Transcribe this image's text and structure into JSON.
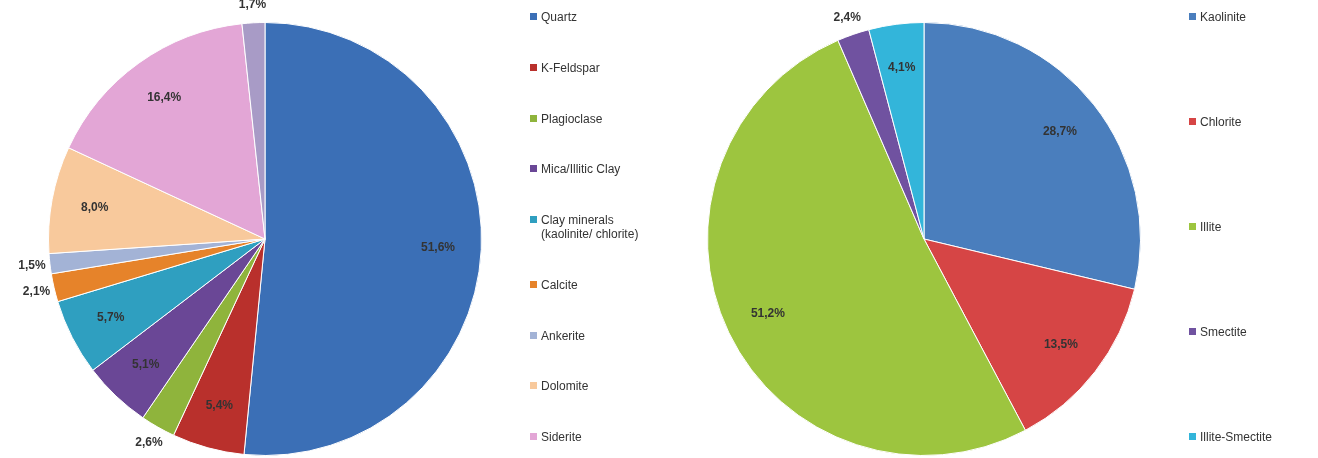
{
  "chart_data": [
    {
      "type": "pie",
      "categories": [
        "Quartz",
        "K-Feldspar",
        "Plagioclase",
        "Mica/Illitic Clay",
        "Clay minerals (kaolinite/ chlorite)",
        "Calcite",
        "Ankerite",
        "Dolomite",
        "Siderite",
        null
      ],
      "values": [
        51.6,
        5.4,
        2.6,
        5.1,
        5.7,
        2.1,
        1.5,
        8.0,
        16.4,
        1.7
      ],
      "colors": [
        "#3b6fb6",
        "#b9302c",
        "#8fb43c",
        "#6a4796",
        "#2f9fc0",
        "#e6832a",
        "#a3b3d6",
        "#f8c99c",
        "#e3a6d6",
        "#a89bc6"
      ],
      "value_labels": [
        "51,6%",
        "5,4%",
        "2,6%",
        "5,1%",
        "5,7%",
        "2,1%",
        "1,5%",
        "8,0%",
        "16,4%",
        "1,7%"
      ],
      "legend": "right"
    },
    {
      "type": "pie",
      "categories": [
        "Kaolinite",
        "Chlorite",
        "Illite",
        "Smectite",
        "Illite-Smectite"
      ],
      "values": [
        28.7,
        13.5,
        51.2,
        2.4,
        4.1
      ],
      "colors": [
        "#4a7ebd",
        "#d64545",
        "#9dc53f",
        "#7052a0",
        "#33b5da"
      ],
      "value_labels": [
        "28,7%",
        "13,5%",
        "51,2%",
        "2,4%",
        "4,1%"
      ],
      "legend": "right"
    }
  ]
}
